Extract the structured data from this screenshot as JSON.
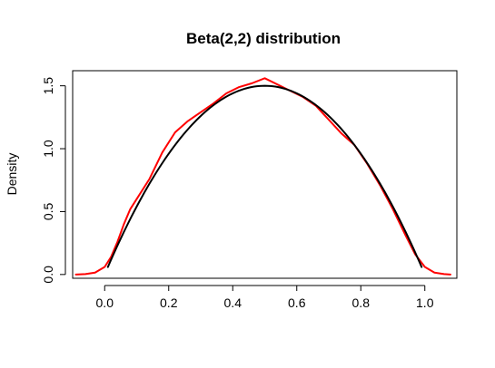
{
  "chart_data": {
    "type": "line",
    "title": "Beta(2,2) distribution",
    "xlabel": "",
    "ylabel": "Density",
    "xlim": [
      -0.1,
      1.1
    ],
    "ylim": [
      -0.03,
      1.62
    ],
    "x_ticks": [
      0.0,
      0.2,
      0.4,
      0.6,
      0.8,
      1.0
    ],
    "x_tick_labels": [
      "0.0",
      "0.2",
      "0.4",
      "0.6",
      "0.8",
      "1.0"
    ],
    "y_ticks": [
      0.0,
      0.5,
      1.0,
      1.5
    ],
    "y_tick_labels": [
      "0.0",
      "0.5",
      "1.0",
      "1.5"
    ],
    "grid": false,
    "series": [
      {
        "color": "#ff0000",
        "x": [
          -0.09,
          -0.06,
          -0.03,
          0.0,
          0.02,
          0.04,
          0.06,
          0.08,
          0.1,
          0.14,
          0.18,
          0.22,
          0.26,
          0.3,
          0.34,
          0.38,
          0.42,
          0.46,
          0.5,
          0.54,
          0.58,
          0.62,
          0.66,
          0.7,
          0.74,
          0.78,
          0.82,
          0.86,
          0.9,
          0.94,
          0.97,
          1.0,
          1.03,
          1.06,
          1.08
        ],
        "y": [
          0.0,
          0.003,
          0.015,
          0.06,
          0.14,
          0.26,
          0.4,
          0.52,
          0.6,
          0.76,
          0.97,
          1.13,
          1.22,
          1.29,
          1.36,
          1.44,
          1.49,
          1.52,
          1.56,
          1.51,
          1.46,
          1.41,
          1.34,
          1.23,
          1.12,
          1.03,
          0.88,
          0.71,
          0.52,
          0.31,
          0.16,
          0.06,
          0.015,
          0.003,
          0.0
        ]
      },
      {
        "color": "#000000",
        "function": "6x(1-x)",
        "x_range": [
          0.01,
          0.99
        ]
      }
    ]
  }
}
